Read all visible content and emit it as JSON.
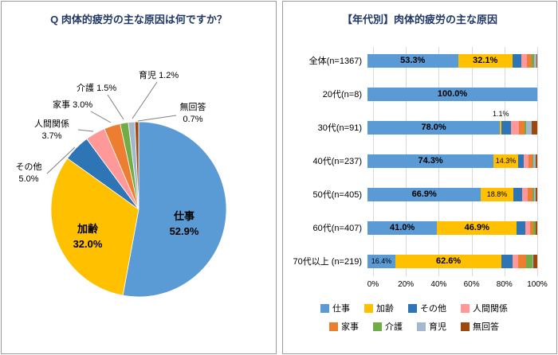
{
  "chart_data": [
    {
      "type": "pie",
      "title": "Q 肉体的疲労の主な原因は何ですか？",
      "labels": [
        "仕事",
        "加齢",
        "その他",
        "人間関係",
        "家事",
        "介護",
        "育児",
        "無回答"
      ],
      "values": [
        52.9,
        32.0,
        5.0,
        3.7,
        3.0,
        1.5,
        1.2,
        0.7
      ],
      "value_labels": [
        "52.9%",
        "32.0%",
        "5.0%",
        "3.7%",
        "3.0%",
        "1.5%",
        "1.2%",
        "0.7%"
      ],
      "colors": [
        "#5B9BD5",
        "#FFC000",
        "#2E75B6",
        "#FF9999",
        "#ED7D31",
        "#70AD47",
        "#A3B8CC",
        "#9E480E"
      ],
      "start_angle_deg": 0,
      "direction": "clockwise"
    },
    {
      "type": "bar",
      "subtype": "horizontal-stacked",
      "title": "【年代別】肉体的疲労の主な原因",
      "series_names": [
        "仕事",
        "加齢",
        "その他",
        "人間関係",
        "家事",
        "介護",
        "育児",
        "無回答"
      ],
      "colors": [
        "#5B9BD5",
        "#FFC000",
        "#2E75B6",
        "#FF9999",
        "#ED7D31",
        "#70AD47",
        "#A3B8CC",
        "#9E480E"
      ],
      "categories": [
        "全体(n=1367)",
        "20代(n=8)",
        "30代(n=91)",
        "40代(n=237)",
        "50代(n=405)",
        "60代(n=407)",
        "70代以上 (n=219)"
      ],
      "rows": [
        {
          "category": "全体(n=1367)",
          "values": [
            53.3,
            32.1,
            5.0,
            3.6,
            2.9,
            1.4,
            1.1,
            0.6
          ]
        },
        {
          "category": "20代(n=8)",
          "values": [
            100.0,
            0,
            0,
            0,
            0,
            0,
            0,
            0
          ]
        },
        {
          "category": "30代(n=91)",
          "values": [
            78.0,
            1.1,
            5.5,
            4.4,
            3.3,
            1.1,
            3.3,
            3.3
          ]
        },
        {
          "category": "40代(n=237)",
          "values": [
            74.3,
            14.3,
            3.4,
            3.0,
            2.1,
            0.4,
            1.7,
            0.8
          ]
        },
        {
          "category": "50代(n=405)",
          "values": [
            66.9,
            18.8,
            5.2,
            3.7,
            2.7,
            1.0,
            0.7,
            1.0
          ]
        },
        {
          "category": "60代(n=407)",
          "values": [
            41.0,
            46.9,
            5.2,
            2.5,
            2.2,
            1.2,
            0.2,
            0.8
          ]
        },
        {
          "category": "70代以上 (n=219)",
          "values": [
            16.4,
            62.6,
            6.4,
            3.2,
            5.0,
            3.7,
            0.5,
            2.2
          ]
        }
      ],
      "visible_value_labels": [
        "53.3%",
        "32.1%",
        "100.0%",
        "78.0%",
        "1.1%",
        "74.3%",
        "14.3%",
        "66.9%",
        "18.8%",
        "41.0%",
        "46.9%",
        "16.4%",
        "62.6%"
      ],
      "annotations": [
        {
          "text": "1.1%",
          "category": "30代(n=91)",
          "series": "加齢",
          "x_pct": 78.5
        }
      ],
      "x_axis_ticks": [
        "0%",
        "20%",
        "40%",
        "60%",
        "80%",
        "100%"
      ],
      "xlim": [
        0,
        100
      ],
      "grid": true,
      "legend_position": "bottom",
      "legend_rows": [
        [
          "仕事",
          "加齢",
          "その他",
          "人間関係"
        ],
        [
          "家事",
          "介護",
          "育児",
          "無回答"
        ]
      ]
    }
  ]
}
